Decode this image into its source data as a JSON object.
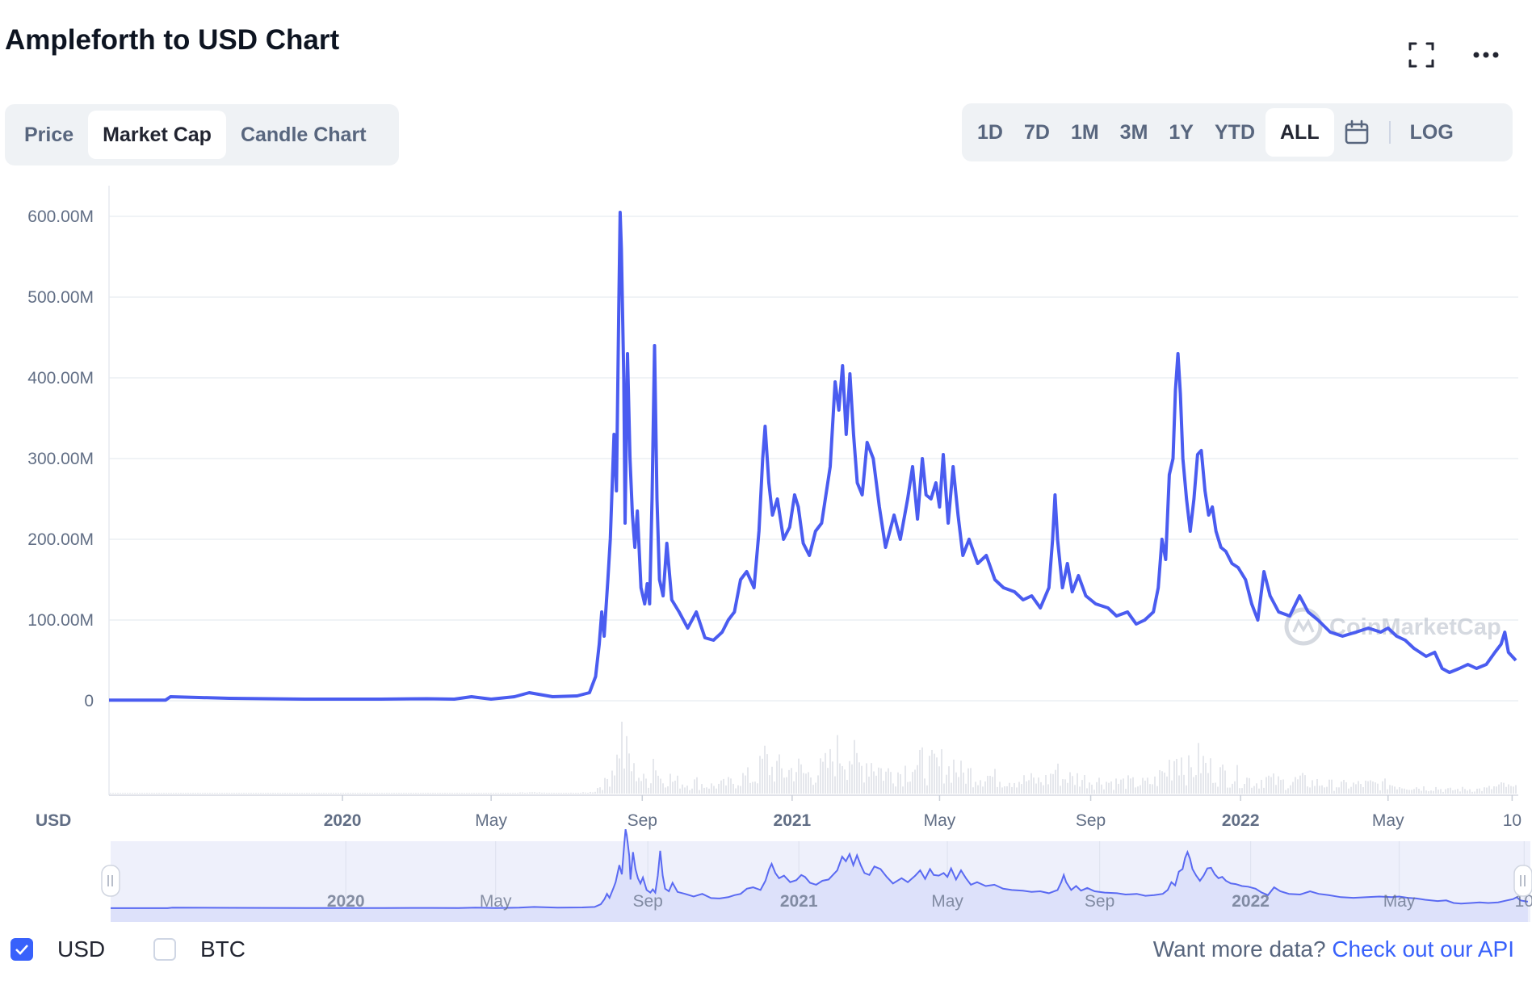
{
  "header": {
    "title": "Ampleforth to USD Chart",
    "fullscreen_icon": "fullscreen-icon",
    "more_icon": "more-horizontal-icon"
  },
  "view_tabs": [
    {
      "label": "Price",
      "active": false
    },
    {
      "label": "Market Cap",
      "active": true
    },
    {
      "label": "Candle Chart",
      "active": false
    }
  ],
  "range_tabs": [
    {
      "label": "1D",
      "active": false
    },
    {
      "label": "7D",
      "active": false
    },
    {
      "label": "1M",
      "active": false
    },
    {
      "label": "3M",
      "active": false
    },
    {
      "label": "1Y",
      "active": false
    },
    {
      "label": "YTD",
      "active": false
    },
    {
      "label": "ALL",
      "active": true
    }
  ],
  "calendar_icon": "calendar-icon",
  "log_label": "LOG",
  "watermark": "CoinMarketCap",
  "currency_axis_label": "USD",
  "legend": [
    {
      "label": "USD",
      "checked": true
    },
    {
      "label": "BTC",
      "checked": false
    }
  ],
  "api_prompt": "Want more data?",
  "api_link": "Check out our API",
  "colors": {
    "line": "#4a5cf0",
    "accent": "#3861fb",
    "volume": "#cfd3dc",
    "navigator_fill": "#e6e9fb"
  },
  "chart_data": {
    "type": "line",
    "y_ticks": [
      "0",
      "100.00M",
      "200.00M",
      "300.00M",
      "400.00M",
      "500.00M",
      "600.00M"
    ],
    "ylim": [
      0,
      600000000
    ],
    "x_ticks": [
      {
        "label": "2020",
        "date": "2020-01-01",
        "bold": true
      },
      {
        "label": "May",
        "date": "2020-05-01",
        "bold": false
      },
      {
        "label": "Sep",
        "date": "2020-09-01",
        "bold": false
      },
      {
        "label": "2021",
        "date": "2021-01-01",
        "bold": true
      },
      {
        "label": "May",
        "date": "2021-05-01",
        "bold": false
      },
      {
        "label": "Sep",
        "date": "2021-09-01",
        "bold": false
      },
      {
        "label": "2022",
        "date": "2022-01-01",
        "bold": true
      },
      {
        "label": "May",
        "date": "2022-05-01",
        "bold": false
      },
      {
        "label": "10",
        "date": "2022-08-10",
        "bold": false
      }
    ],
    "xlim": [
      "2019-06-25",
      "2022-08-15"
    ],
    "grid": true,
    "series": [
      {
        "points": [
          [
            "2019-06-25",
            0.8
          ],
          [
            "2019-08-10",
            0.8
          ],
          [
            "2019-08-14",
            5
          ],
          [
            "2019-10-01",
            3
          ],
          [
            "2019-12-01",
            2
          ],
          [
            "2020-02-01",
            2
          ],
          [
            "2020-03-10",
            2.5
          ],
          [
            "2020-04-01",
            2
          ],
          [
            "2020-04-15",
            5
          ],
          [
            "2020-05-01",
            2
          ],
          [
            "2020-05-20",
            5
          ],
          [
            "2020-06-01",
            10
          ],
          [
            "2020-06-20",
            5
          ],
          [
            "2020-07-10",
            6
          ],
          [
            "2020-07-20",
            10
          ],
          [
            "2020-07-25",
            30
          ],
          [
            "2020-07-28",
            70
          ],
          [
            "2020-07-30",
            110
          ],
          [
            "2020-08-01",
            80
          ],
          [
            "2020-08-04",
            150
          ],
          [
            "2020-08-06",
            200
          ],
          [
            "2020-08-09",
            330
          ],
          [
            "2020-08-11",
            260
          ],
          [
            "2020-08-13",
            500
          ],
          [
            "2020-08-14",
            605
          ],
          [
            "2020-08-15",
            560
          ],
          [
            "2020-08-17",
            400
          ],
          [
            "2020-08-18",
            220
          ],
          [
            "2020-08-20",
            430
          ],
          [
            "2020-08-22",
            300
          ],
          [
            "2020-08-24",
            230
          ],
          [
            "2020-08-26",
            190
          ],
          [
            "2020-08-28",
            235
          ],
          [
            "2020-08-31",
            140
          ],
          [
            "2020-09-03",
            120
          ],
          [
            "2020-09-05",
            145
          ],
          [
            "2020-09-07",
            120
          ],
          [
            "2020-09-09",
            250
          ],
          [
            "2020-09-11",
            440
          ],
          [
            "2020-09-13",
            250
          ],
          [
            "2020-09-15",
            150
          ],
          [
            "2020-09-18",
            130
          ],
          [
            "2020-09-21",
            195
          ],
          [
            "2020-09-25",
            125
          ],
          [
            "2020-10-01",
            110
          ],
          [
            "2020-10-08",
            90
          ],
          [
            "2020-10-15",
            110
          ],
          [
            "2020-10-22",
            78
          ],
          [
            "2020-10-29",
            75
          ],
          [
            "2020-11-05",
            85
          ],
          [
            "2020-11-10",
            100
          ],
          [
            "2020-11-15",
            110
          ],
          [
            "2020-11-20",
            150
          ],
          [
            "2020-11-25",
            160
          ],
          [
            "2020-12-01",
            140
          ],
          [
            "2020-12-05",
            210
          ],
          [
            "2020-12-08",
            300
          ],
          [
            "2020-12-10",
            340
          ],
          [
            "2020-12-13",
            270
          ],
          [
            "2020-12-16",
            230
          ],
          [
            "2020-12-20",
            250
          ],
          [
            "2020-12-25",
            200
          ],
          [
            "2020-12-30",
            215
          ],
          [
            "2021-01-03",
            255
          ],
          [
            "2021-01-06",
            240
          ],
          [
            "2021-01-10",
            195
          ],
          [
            "2021-01-15",
            180
          ],
          [
            "2021-01-20",
            210
          ],
          [
            "2021-01-25",
            220
          ],
          [
            "2021-02-01",
            290
          ],
          [
            "2021-02-05",
            395
          ],
          [
            "2021-02-08",
            360
          ],
          [
            "2021-02-11",
            415
          ],
          [
            "2021-02-14",
            330
          ],
          [
            "2021-02-17",
            405
          ],
          [
            "2021-02-20",
            330
          ],
          [
            "2021-02-23",
            270
          ],
          [
            "2021-02-27",
            255
          ],
          [
            "2021-03-03",
            320
          ],
          [
            "2021-03-08",
            300
          ],
          [
            "2021-03-13",
            240
          ],
          [
            "2021-03-18",
            190
          ],
          [
            "2021-03-25",
            230
          ],
          [
            "2021-03-30",
            200
          ],
          [
            "2021-04-05",
            250
          ],
          [
            "2021-04-09",
            290
          ],
          [
            "2021-04-13",
            225
          ],
          [
            "2021-04-17",
            300
          ],
          [
            "2021-04-20",
            255
          ],
          [
            "2021-04-24",
            250
          ],
          [
            "2021-04-28",
            270
          ],
          [
            "2021-05-01",
            240
          ],
          [
            "2021-05-04",
            305
          ],
          [
            "2021-05-08",
            220
          ],
          [
            "2021-05-12",
            290
          ],
          [
            "2021-05-16",
            230
          ],
          [
            "2021-05-20",
            180
          ],
          [
            "2021-05-25",
            200
          ],
          [
            "2021-06-01",
            170
          ],
          [
            "2021-06-08",
            180
          ],
          [
            "2021-06-15",
            150
          ],
          [
            "2021-06-22",
            140
          ],
          [
            "2021-07-01",
            135
          ],
          [
            "2021-07-08",
            125
          ],
          [
            "2021-07-15",
            130
          ],
          [
            "2021-07-22",
            115
          ],
          [
            "2021-07-29",
            140
          ],
          [
            "2021-08-01",
            200
          ],
          [
            "2021-08-03",
            255
          ],
          [
            "2021-08-05",
            200
          ],
          [
            "2021-08-09",
            140
          ],
          [
            "2021-08-13",
            170
          ],
          [
            "2021-08-17",
            135
          ],
          [
            "2021-08-22",
            155
          ],
          [
            "2021-08-28",
            130
          ],
          [
            "2021-09-05",
            120
          ],
          [
            "2021-09-15",
            115
          ],
          [
            "2021-09-22",
            105
          ],
          [
            "2021-10-01",
            110
          ],
          [
            "2021-10-08",
            95
          ],
          [
            "2021-10-15",
            100
          ],
          [
            "2021-10-22",
            110
          ],
          [
            "2021-10-26",
            140
          ],
          [
            "2021-10-29",
            200
          ],
          [
            "2021-11-01",
            175
          ],
          [
            "2021-11-04",
            280
          ],
          [
            "2021-11-07",
            300
          ],
          [
            "2021-11-09",
            385
          ],
          [
            "2021-11-11",
            430
          ],
          [
            "2021-11-13",
            380
          ],
          [
            "2021-11-15",
            300
          ],
          [
            "2021-11-18",
            250
          ],
          [
            "2021-11-21",
            210
          ],
          [
            "2021-11-24",
            250
          ],
          [
            "2021-11-27",
            305
          ],
          [
            "2021-11-30",
            310
          ],
          [
            "2021-12-03",
            260
          ],
          [
            "2021-12-06",
            230
          ],
          [
            "2021-12-09",
            240
          ],
          [
            "2021-12-12",
            210
          ],
          [
            "2021-12-16",
            190
          ],
          [
            "2021-12-20",
            185
          ],
          [
            "2021-12-25",
            170
          ],
          [
            "2021-12-30",
            165
          ],
          [
            "2022-01-05",
            150
          ],
          [
            "2022-01-10",
            120
          ],
          [
            "2022-01-15",
            100
          ],
          [
            "2022-01-20",
            160
          ],
          [
            "2022-01-25",
            130
          ],
          [
            "2022-02-01",
            110
          ],
          [
            "2022-02-10",
            105
          ],
          [
            "2022-02-18",
            130
          ],
          [
            "2022-02-25",
            110
          ],
          [
            "2022-03-05",
            100
          ],
          [
            "2022-03-15",
            85
          ],
          [
            "2022-03-25",
            80
          ],
          [
            "2022-04-05",
            85
          ],
          [
            "2022-04-15",
            90
          ],
          [
            "2022-04-25",
            85
          ],
          [
            "2022-05-01",
            90
          ],
          [
            "2022-05-08",
            80
          ],
          [
            "2022-05-15",
            75
          ],
          [
            "2022-05-22",
            65
          ],
          [
            "2022-06-01",
            55
          ],
          [
            "2022-06-08",
            60
          ],
          [
            "2022-06-14",
            40
          ],
          [
            "2022-06-20",
            35
          ],
          [
            "2022-06-28",
            40
          ],
          [
            "2022-07-05",
            45
          ],
          [
            "2022-07-12",
            40
          ],
          [
            "2022-07-20",
            45
          ],
          [
            "2022-07-27",
            60
          ],
          [
            "2022-08-01",
            70
          ],
          [
            "2022-08-04",
            85
          ],
          [
            "2022-08-07",
            60
          ],
          [
            "2022-08-10",
            55
          ],
          [
            "2022-08-13",
            50
          ]
        ]
      }
    ]
  }
}
